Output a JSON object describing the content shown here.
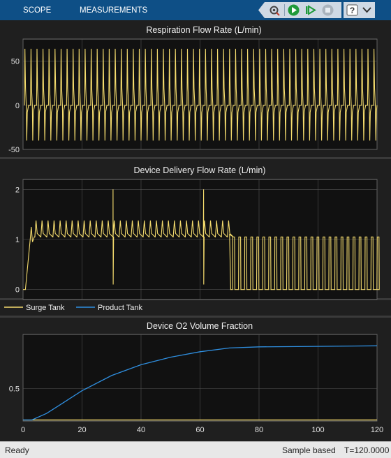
{
  "toolbar": {
    "tabs": [
      "SCOPE",
      "MEASUREMENTS"
    ],
    "icons": [
      "settings-pin-icon",
      "run-icon",
      "step-forward-icon",
      "stop-icon",
      "help-icon",
      "expand-icon"
    ]
  },
  "colors": {
    "surge": "#f5dc6e",
    "product": "#2f8fe0",
    "axes_bg": "#111111",
    "grid": "#555555"
  },
  "legend": {
    "items": [
      "Surge Tank",
      "Product Tank"
    ]
  },
  "status": {
    "left": "Ready",
    "mode": "Sample based",
    "time": "T=120.0000"
  },
  "chart_data": [
    {
      "type": "line",
      "title": "Respiration Flow Rate (L/min)",
      "xlim": [
        0,
        120
      ],
      "ylim": [
        -50,
        75
      ],
      "y_ticks": [
        "50",
        "0",
        "-50"
      ],
      "series": [
        {
          "values_description_free": true,
          "breath_period_s": 2.04,
          "peak": 64,
          "trough": -40,
          "rest": 0
        }
      ]
    },
    {
      "type": "line",
      "title": "Device Delivery Flow Rate (L/min)",
      "xlim": [
        0,
        120
      ],
      "ylim": [
        -0.2,
        2.2
      ],
      "y_ticks": [
        "2",
        "1",
        "0"
      ],
      "series": [
        {
          "base_before_70s": 1.05,
          "peak_before_70s": 1.38,
          "spikes": [
            [
              30.5,
              2.0,
              0.1
            ],
            [
              61.2,
              2.0,
              0.1
            ]
          ],
          "drop_time": 70,
          "pulse_after_70s": 1.05,
          "rest_after_70s": 0.0
        }
      ]
    },
    {
      "type": "line",
      "title": "Device O2 Volume Fraction",
      "xlim": [
        0,
        120
      ],
      "ylim": [
        0.2,
        1.0
      ],
      "x_ticks": [
        "0",
        "20",
        "40",
        "60",
        "80",
        "100",
        "120"
      ],
      "y_ticks": [
        "0.5"
      ],
      "series": [
        {
          "name": "Surge Tank",
          "x": [
            0,
            120
          ],
          "y": [
            0.21,
            0.21
          ]
        },
        {
          "name": "Product Tank",
          "x": [
            0,
            3,
            8,
            12,
            20,
            30,
            40,
            50,
            60,
            70,
            80,
            100,
            120
          ],
          "y": [
            0.21,
            0.21,
            0.27,
            0.34,
            0.48,
            0.62,
            0.72,
            0.79,
            0.84,
            0.875,
            0.885,
            0.89,
            0.895
          ]
        }
      ]
    }
  ]
}
